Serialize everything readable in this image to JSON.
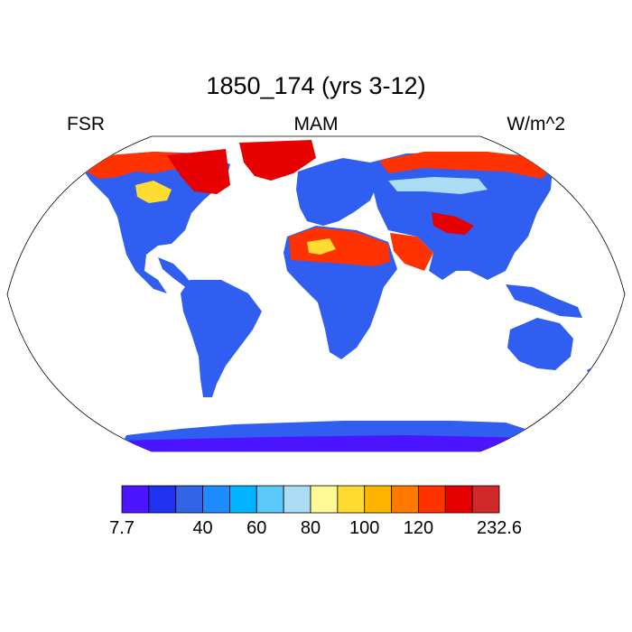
{
  "title": "1850_174 (yrs 3-12)",
  "left_label": "FSR",
  "center_label": "MAM",
  "right_label": "W/m^2",
  "colorbar": {
    "colors": [
      "#4b16ff",
      "#1e32f0",
      "#3264e6",
      "#1e8cff",
      "#00b4ff",
      "#5ac8fa",
      "#aadcf5",
      "#fffa96",
      "#ffdc32",
      "#ffb400",
      "#ff7800",
      "#ff3200",
      "#e60000",
      "#d22828"
    ],
    "tick_labels": [
      "7.7",
      "40",
      "60",
      "80",
      "100",
      "120",
      "232.6"
    ],
    "tick_boundary_index": [
      0,
      3,
      5,
      7,
      9,
      11,
      14
    ]
  },
  "map": {
    "projection": "Robinson",
    "land_fill_default": "#2f5ef0",
    "ocean_fill": "#ffffff"
  }
}
